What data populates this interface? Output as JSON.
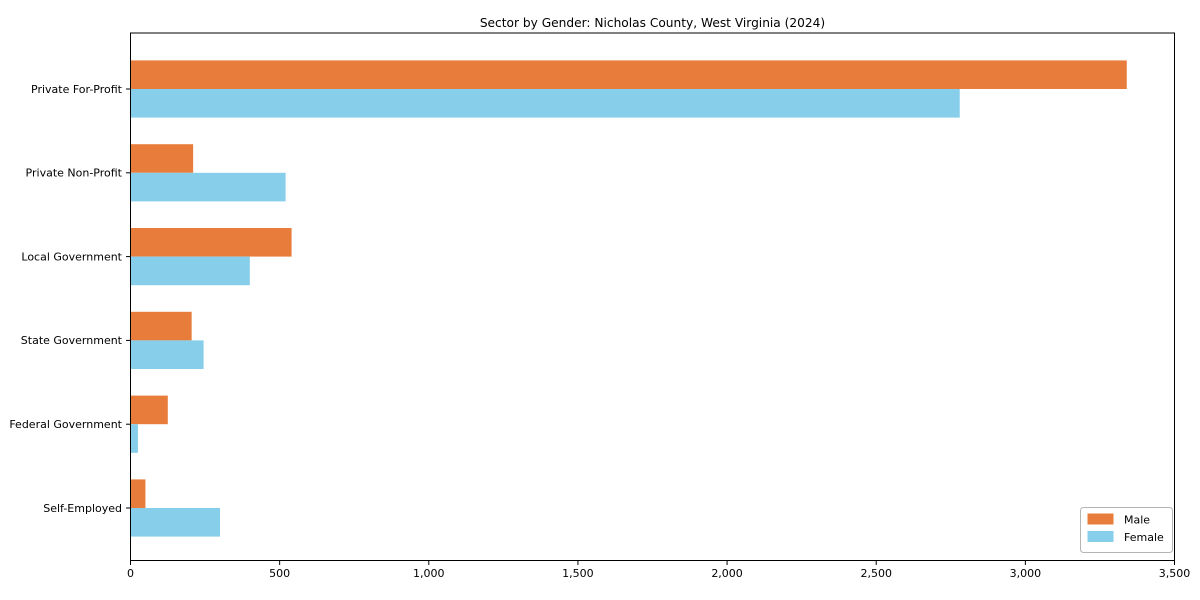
{
  "chart_data": {
    "type": "bar",
    "orientation": "horizontal",
    "title": "Sector by Gender: Nicholas County, West Virginia (2024)",
    "categories": [
      "Private For-Profit",
      "Private Non-Profit",
      "Local Government",
      "State Government",
      "Federal Government",
      "Self-Employed"
    ],
    "series": [
      {
        "name": "Male",
        "color": "#e87d3b",
        "values": [
          3340,
          210,
          540,
          205,
          125,
          50
        ]
      },
      {
        "name": "Female",
        "color": "#87ceeb",
        "values": [
          2780,
          520,
          400,
          245,
          25,
          300
        ]
      }
    ],
    "xlabel": "",
    "ylabel": "",
    "xlim": [
      0,
      3500
    ],
    "xticks": [
      0,
      500,
      1000,
      1500,
      2000,
      2500,
      3000,
      3500
    ],
    "xtick_labels": [
      "0",
      "500",
      "1,000",
      "1,500",
      "2,000",
      "2,500",
      "3,000",
      "3,500"
    ],
    "legend": {
      "position": "lower right",
      "entries": [
        "Male",
        "Female"
      ]
    },
    "grid": false,
    "background_color": "#ffffff",
    "axis_color": "#000000",
    "legend_border_color": "#b5b5b5"
  }
}
